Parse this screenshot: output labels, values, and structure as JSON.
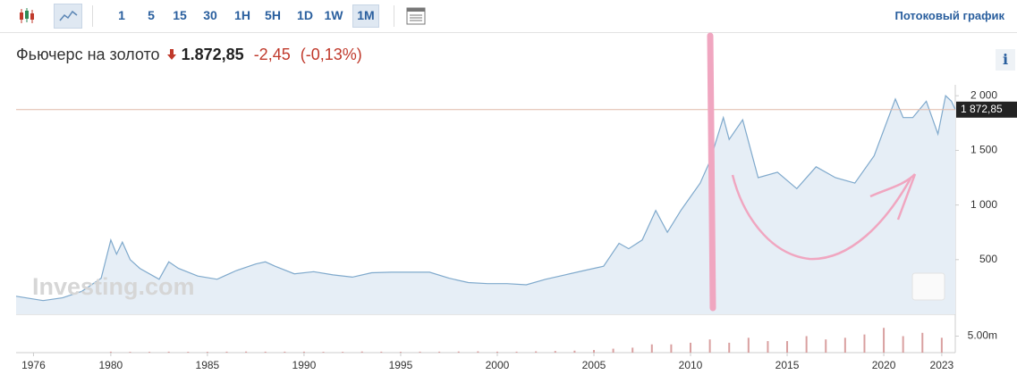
{
  "toolbar": {
    "intervals": [
      "1",
      "5",
      "15",
      "30",
      "1H",
      "5H",
      "1D",
      "1W",
      "1M"
    ],
    "active": "1M",
    "stream": "Потоковый график",
    "info": "i"
  },
  "header": {
    "title": "Фьючерс на золото",
    "price": "1.872,85",
    "change": "-2,45",
    "change_pct": "(-0,13%)"
  },
  "watermark": "Investing.com",
  "chart_data": [
    {
      "type": "area",
      "color": "#7fa9cc",
      "fill": "#e6eef6",
      "x": [
        1975.1,
        1976.5,
        1977.5,
        1978.5,
        1979.5,
        1980.0,
        1980.3,
        1980.6,
        1981.0,
        1981.5,
        1982.5,
        1983.0,
        1983.5,
        1984.5,
        1985.5,
        1986.5,
        1987.5,
        1988.0,
        1988.5,
        1989.5,
        1990.5,
        1991.5,
        1992.5,
        1993.5,
        1994.5,
        1995.5,
        1996.5,
        1997.5,
        1998.5,
        1999.5,
        2000.5,
        2001.5,
        2002.5,
        2003.5,
        2004.5,
        2005.5,
        2006.3,
        2006.8,
        2007.5,
        2008.2,
        2008.8,
        2009.5,
        2010.5,
        2011.0,
        2011.7,
        2012.0,
        2012.7,
        2013.5,
        2014.5,
        2015.5,
        2016.5,
        2017.5,
        2018.5,
        2019.5,
        2020.6,
        2021.0,
        2021.5,
        2022.2,
        2022.8,
        2023.2,
        2023.5,
        2023.7
      ],
      "values": [
        165,
        125,
        150,
        210,
        330,
        680,
        550,
        660,
        500,
        420,
        320,
        480,
        420,
        350,
        320,
        400,
        460,
        480,
        440,
        370,
        390,
        360,
        340,
        380,
        385,
        385,
        385,
        330,
        290,
        280,
        280,
        270,
        320,
        360,
        400,
        440,
        650,
        600,
        680,
        950,
        750,
        950,
        1200,
        1400,
        1800,
        1600,
        1780,
        1250,
        1300,
        1150,
        1350,
        1250,
        1200,
        1450,
        1970,
        1800,
        1800,
        1950,
        1650,
        2000,
        1950,
        1872.85
      ],
      "xlim": [
        1975.1,
        2023.7
      ],
      "xticks": [
        1976,
        1980,
        1985,
        1990,
        1995,
        2000,
        2005,
        2010,
        2015,
        2020,
        2023
      ],
      "ylim": [
        0,
        2100
      ],
      "yticks": [
        500,
        {
          "value": 1000,
          "label": "1 000"
        },
        {
          "value": 1500,
          "label": "1 500"
        },
        {
          "value": 2000,
          "label": "2 000"
        }
      ],
      "last_price": {
        "value": 1872.85,
        "label": "1 872,85"
      }
    },
    {
      "type": "bar",
      "color": "#d9a0a0",
      "x": [
        1980,
        1981,
        1982,
        1983,
        1984,
        1985,
        1986,
        1987,
        1988,
        1989,
        1990,
        1991,
        1992,
        1993,
        1994,
        1995,
        1996,
        1997,
        1998,
        1999,
        2000,
        2001,
        2002,
        2003,
        2004,
        2005,
        2006,
        2007,
        2008,
        2009,
        2010,
        2011,
        2012,
        2013,
        2014,
        2015,
        2016,
        2017,
        2018,
        2019,
        2020,
        2021,
        2022,
        2023
      ],
      "values": [
        300000,
        250000,
        250000,
        300000,
        250000,
        250000,
        300000,
        350000,
        300000,
        300000,
        300000,
        250000,
        250000,
        350000,
        300000,
        250000,
        300000,
        300000,
        350000,
        400000,
        300000,
        300000,
        400000,
        500000,
        600000,
        800000,
        1200000,
        1500000,
        2500000,
        2500000,
        3000000,
        4000000,
        3000000,
        4500000,
        3500000,
        3500000,
        5000000,
        4000000,
        4500000,
        5500000,
        7500000,
        5000000,
        6000000,
        4500000
      ],
      "xlim": [
        1975.1,
        2023.7
      ],
      "ylim": [
        0,
        10000000
      ],
      "yticks": [
        {
          "value": 5000000,
          "label": "5.00m"
        }
      ]
    }
  ]
}
